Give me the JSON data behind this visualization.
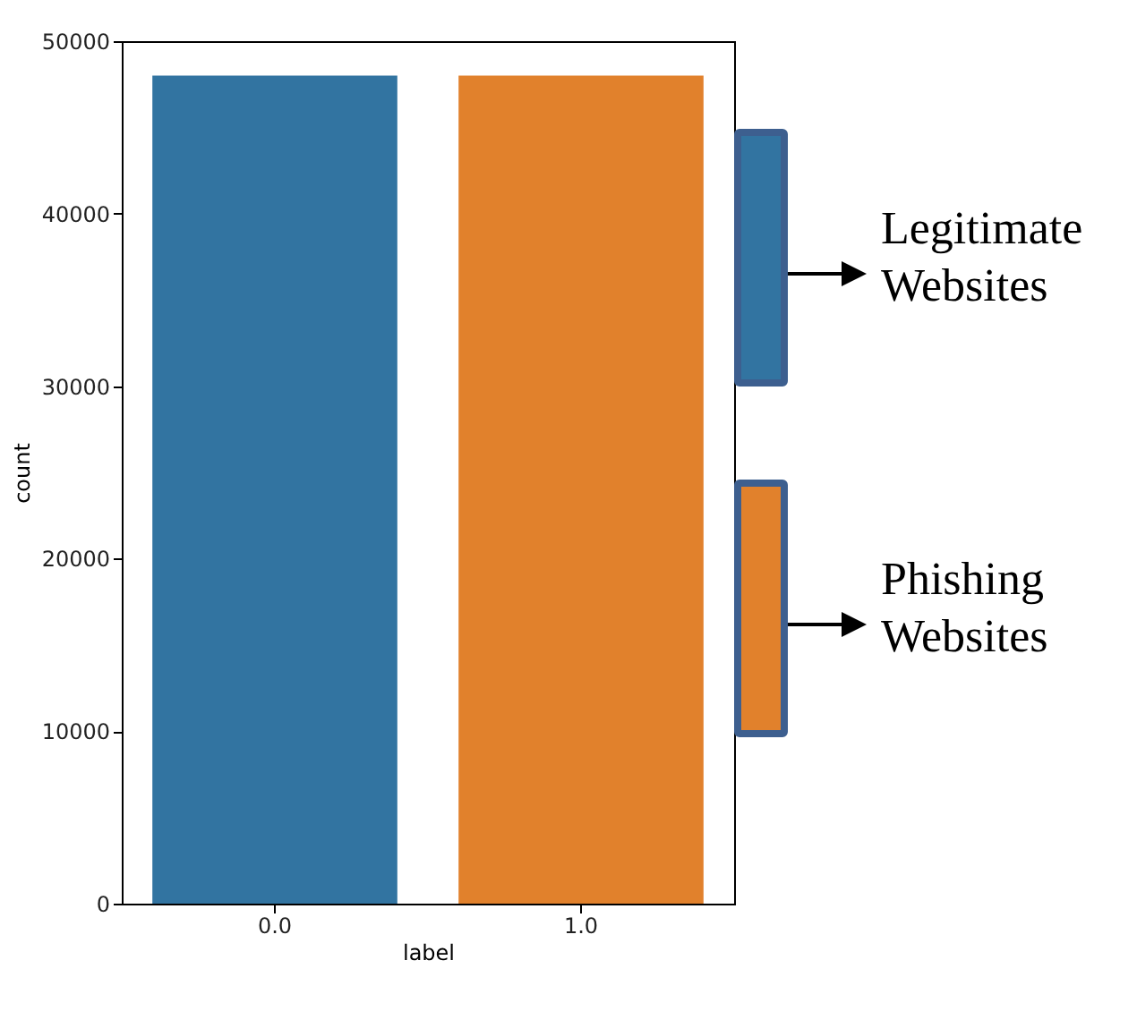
{
  "chart_data": {
    "type": "bar",
    "xlabel": "label",
    "ylabel": "count",
    "categories": [
      "0.0",
      "1.0"
    ],
    "series": [
      {
        "name": "Legitimate Websites",
        "color": "#3274a1",
        "values": [
          48000,
          null
        ]
      },
      {
        "name": "Phishing Websites",
        "color": "#e1812c",
        "values": [
          null,
          48000
        ]
      }
    ],
    "ylim": [
      0,
      50000
    ],
    "yticks": [
      0,
      10000,
      20000,
      30000,
      40000,
      50000
    ],
    "grid": false,
    "legend": "right"
  }
}
